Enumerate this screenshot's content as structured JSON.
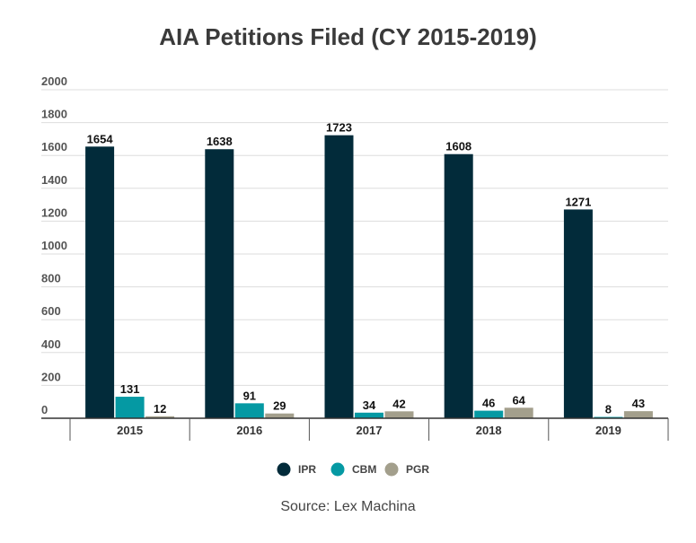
{
  "chart_data": {
    "type": "bar",
    "title": "AIA Petitions Filed (CY 2015-2019)",
    "categories": [
      "2015",
      "2016",
      "2017",
      "2018",
      "2019"
    ],
    "series": [
      {
        "name": "IPR",
        "color": "#022b3a",
        "values": [
          1654,
          1638,
          1723,
          1608,
          1271
        ]
      },
      {
        "name": "CBM",
        "color": "#0599a3",
        "values": [
          131,
          91,
          34,
          46,
          8
        ]
      },
      {
        "name": "PGR",
        "color": "#a39f8c",
        "values": [
          12,
          29,
          42,
          64,
          43
        ]
      }
    ],
    "yticks": [
      "0",
      "200",
      "400",
      "600",
      "800",
      "1000",
      "1200",
      "1400",
      "1600",
      "1800",
      "2000"
    ],
    "ylim": [
      0,
      2000
    ],
    "grid": true,
    "legend_position": "bottom",
    "source": "Source: Lex Machina"
  }
}
